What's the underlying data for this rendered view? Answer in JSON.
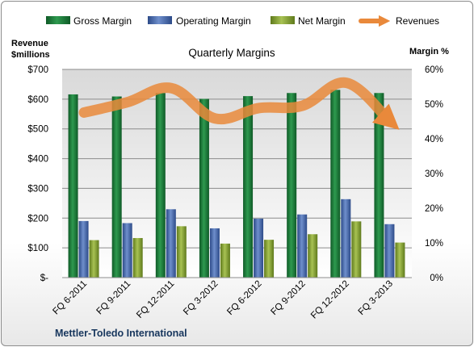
{
  "chart_data": {
    "type": "bar",
    "title": "Quarterly Margins",
    "company": "Mettler-Toledo International",
    "ylabel_left": "Revenue $millions",
    "ylabel_right": "Margin %",
    "categories": [
      "FQ 6-2011",
      "FQ 9-2011",
      "FQ 12-2011",
      "FQ 3-2012",
      "FQ 6-2012",
      "FQ 9-2012",
      "FQ 12-2012",
      "FQ 3-2013"
    ],
    "left_axis": {
      "min": 0,
      "max": 700,
      "step": 100,
      "tick_labels": [
        "$-",
        "$100",
        "$200",
        "$300",
        "$400",
        "$500",
        "$600",
        "$700"
      ]
    },
    "right_axis": {
      "min": 0,
      "max": 0.6,
      "step": 0.1,
      "tick_labels": [
        "0%",
        "10%",
        "20%",
        "30%",
        "40%",
        "50%",
        "60%"
      ]
    },
    "grid": true,
    "legend_position": "top",
    "series": [
      {
        "name": "Gross Margin",
        "axis": "right",
        "kind": "bar",
        "color": "#1e7b3a",
        "values": [
          0.528,
          0.522,
          0.532,
          0.515,
          0.523,
          0.532,
          0.541,
          0.532
        ]
      },
      {
        "name": "Operating Margin",
        "axis": "right",
        "kind": "bar",
        "color": "#4a6aab",
        "values": [
          0.163,
          0.157,
          0.197,
          0.142,
          0.17,
          0.182,
          0.226,
          0.154
        ]
      },
      {
        "name": "Net Margin",
        "axis": "right",
        "kind": "bar",
        "color": "#8aa33a",
        "values": [
          0.108,
          0.114,
          0.148,
          0.098,
          0.109,
          0.125,
          0.162,
          0.101
        ]
      },
      {
        "name": "Revenues",
        "axis": "left",
        "kind": "line",
        "color": "#e9893b",
        "values": [
          555,
          590,
          637,
          535,
          570,
          578,
          655,
          525
        ]
      }
    ]
  }
}
